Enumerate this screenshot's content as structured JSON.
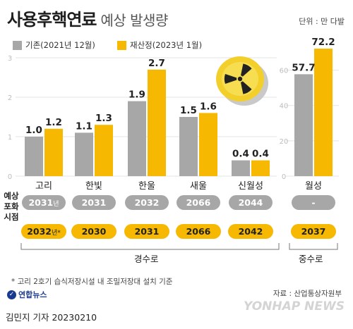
{
  "header": {
    "title": "사용후핵연료",
    "subtitle": "예상 발생량",
    "unit": "단위 : 만 다발"
  },
  "legend": [
    {
      "label": "기존(2021년 12월)",
      "color": "#a7a7a7"
    },
    {
      "label": "재산정(2023년 1월)",
      "color": "#f6b800"
    }
  ],
  "rows": {
    "label1": "예상",
    "label2": "포화",
    "label3": "시점"
  },
  "groups": {
    "left": "경수로",
    "right": "중수로"
  },
  "saturation": {
    "prev": [
      {
        "year": "2031",
        "suffix": "년"
      },
      {
        "year": "2031",
        "suffix": ""
      },
      {
        "year": "2032",
        "suffix": ""
      },
      {
        "year": "2066",
        "suffix": ""
      },
      {
        "year": "2044",
        "suffix": ""
      },
      {
        "year": "-",
        "suffix": ""
      }
    ],
    "new": [
      {
        "year": "2032",
        "suffix": "년*"
      },
      {
        "year": "2030",
        "suffix": ""
      },
      {
        "year": "2031",
        "suffix": ""
      },
      {
        "year": "2066",
        "suffix": ""
      },
      {
        "year": "2042",
        "suffix": ""
      },
      {
        "year": "2037",
        "suffix": ""
      }
    ]
  },
  "footnote": "* 고리 2호기 습식저장시설 내 조밀저장대 설치 기준",
  "source": "자료 : 산업통상자원부",
  "agency": "연합뉴스",
  "credit": "김민지 기자  20230210",
  "watermark": "YONHAP NEWS",
  "chart_data": [
    {
      "type": "bar",
      "categories": [
        "고리",
        "한빛",
        "한울",
        "새울",
        "신월성"
      ],
      "series": [
        {
          "name": "기존(2021년 12월)",
          "values": [
            1.0,
            1.1,
            1.9,
            1.5,
            0.4
          ],
          "color": "#a7a7a7"
        },
        {
          "name": "재산정(2023년 1월)",
          "values": [
            1.2,
            1.3,
            2.7,
            1.6,
            0.4
          ],
          "color": "#f6b800"
        }
      ],
      "ylim": [
        0,
        3.0
      ],
      "yticks": [
        0,
        1,
        2,
        3
      ],
      "grid": true
    },
    {
      "type": "bar",
      "categories": [
        "월성"
      ],
      "series": [
        {
          "name": "기존(2021년 12월)",
          "values": [
            57.7
          ],
          "color": "#a7a7a7"
        },
        {
          "name": "재산정(2023년 1월)",
          "values": [
            72.2
          ],
          "color": "#f6b800"
        }
      ],
      "ylim": [
        0,
        75
      ],
      "yticks": [
        0,
        20,
        40,
        60
      ],
      "grid": true
    }
  ]
}
